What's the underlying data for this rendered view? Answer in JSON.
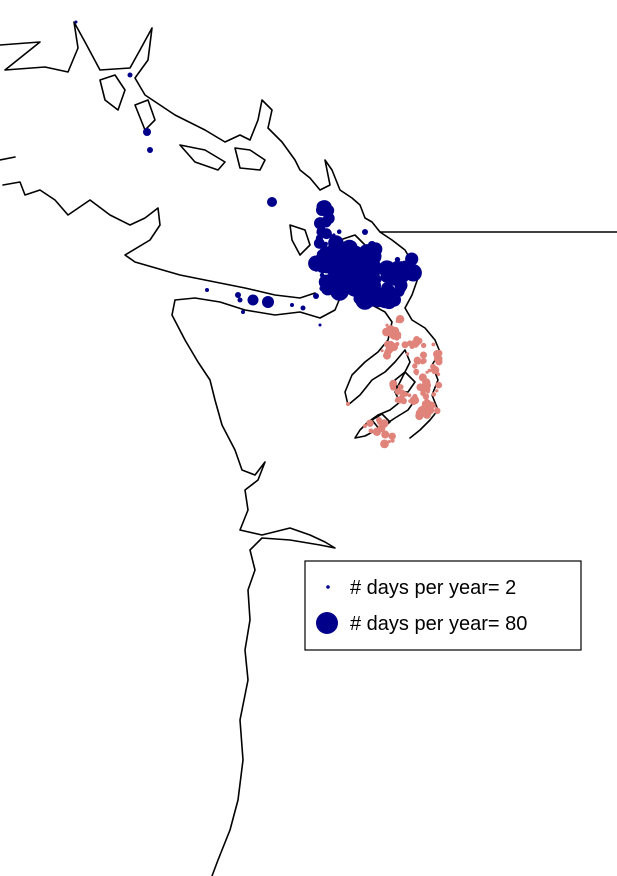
{
  "map": {
    "colors": {
      "coastline": "#000000",
      "dots_primary": "#00008B",
      "dots_secondary": "#E0837A",
      "background": "#ffffff"
    }
  },
  "legend": {
    "items": [
      {
        "label": "# days per year= 2",
        "days": 2,
        "color": "#00008B"
      },
      {
        "label": "# days per year= 80",
        "days": 80,
        "color": "#00008B"
      }
    ]
  }
}
